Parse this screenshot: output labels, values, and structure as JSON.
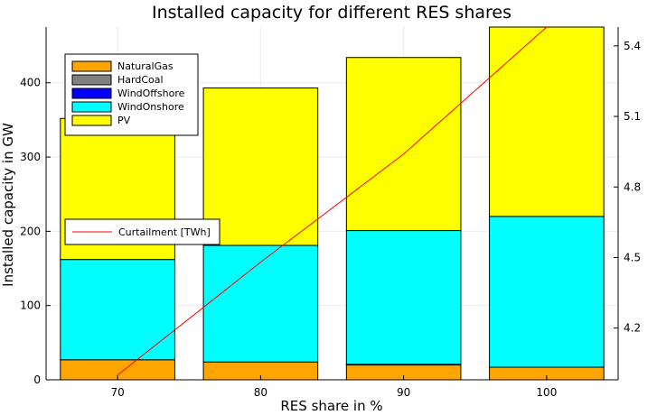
{
  "chart_data": {
    "type": "bar",
    "stacked": true,
    "title": "Installed capacity for different RES shares",
    "xlabel": "RES share in %",
    "ylabel": "Installed capacity in GW",
    "categories": [
      "70",
      "80",
      "90",
      "100"
    ],
    "ylim": [
      0,
      475
    ],
    "yticks": [
      0,
      100,
      200,
      300,
      400
    ],
    "grid": true,
    "series": [
      {
        "name": "NaturalGas",
        "color": "#ffa500",
        "values": [
          27,
          24,
          20,
          17
        ]
      },
      {
        "name": "HardCoal",
        "color": "#808080",
        "values": [
          0,
          0,
          1,
          0
        ]
      },
      {
        "name": "WindOffshore",
        "color": "#0000ff",
        "values": [
          0,
          0,
          0,
          0
        ]
      },
      {
        "name": "WindOnshore",
        "color": "#00ffff",
        "values": [
          135,
          157,
          180,
          203
        ]
      },
      {
        "name": "PV",
        "color": "#ffff00",
        "values": [
          190,
          212,
          233,
          255
        ]
      }
    ],
    "secondary": {
      "type": "line",
      "name": "Curtailment [TWh]",
      "color": "#ff0000",
      "x": [
        70,
        80,
        90,
        100
      ],
      "values": [
        4.0,
        4.48,
        4.94,
        5.48
      ],
      "ylim": [
        3.98,
        5.48
      ],
      "yticks": [
        4.2,
        4.5,
        4.8,
        5.1,
        5.4
      ]
    },
    "legend_placement": "top-left"
  }
}
